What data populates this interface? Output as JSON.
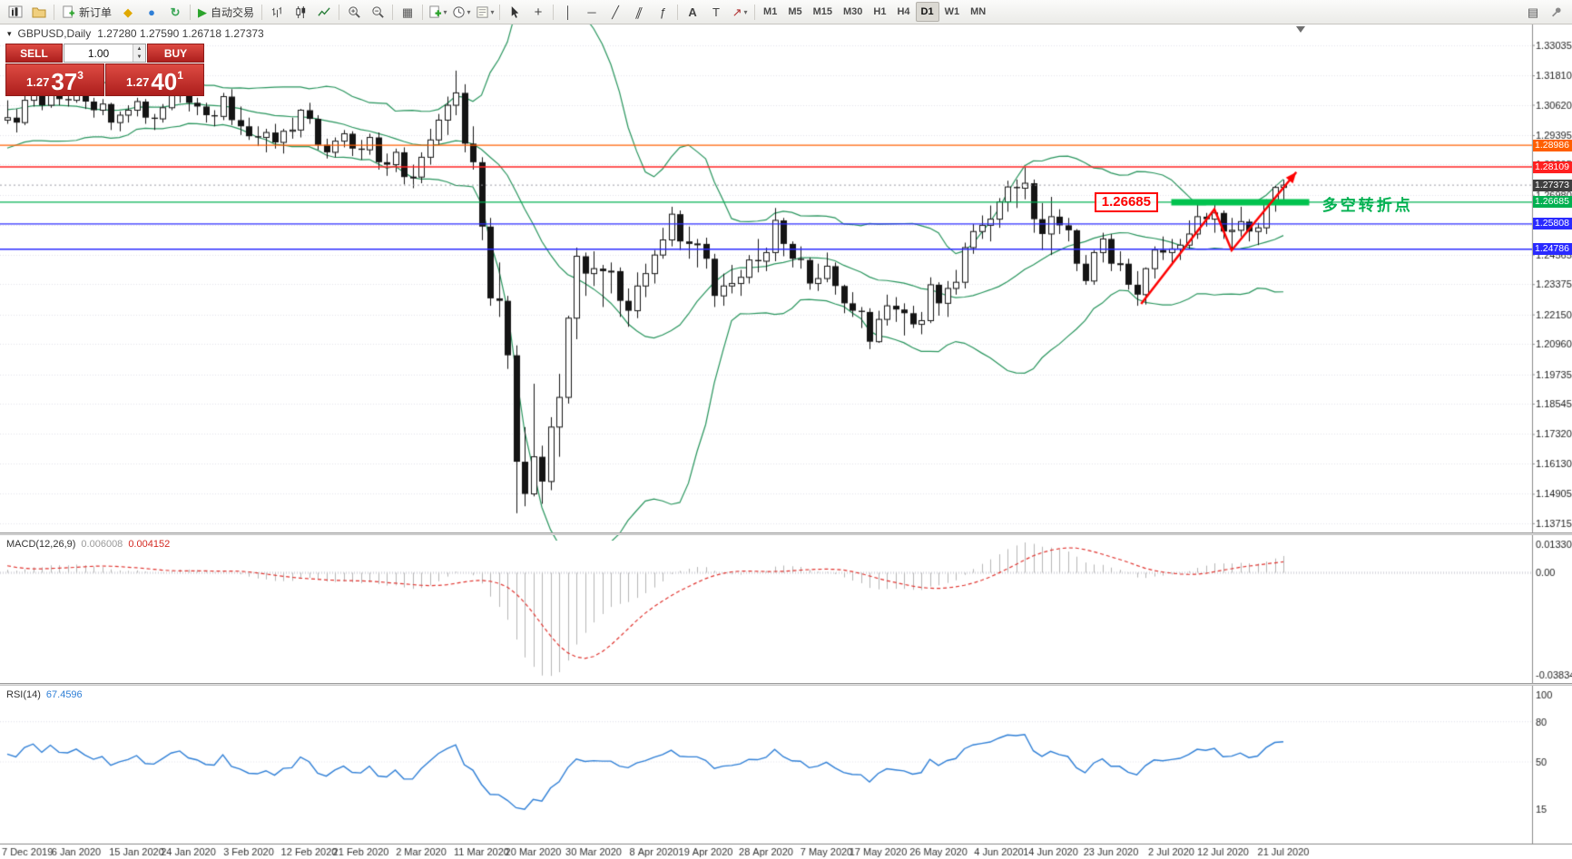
{
  "toolbar": {
    "new_order_label": "新订单",
    "autotrading_label": "自动交易",
    "timeframes": [
      "M1",
      "M5",
      "M15",
      "M30",
      "H1",
      "H4",
      "D1",
      "W1",
      "MN"
    ],
    "active_timeframe": "D1"
  },
  "icons": {
    "metaeditor-icon": "◆",
    "market-watch-icon": "●",
    "navigator-icon": "↻",
    "autotrading-icon": "▶",
    "tile-windows-icon": "▦",
    "crosshair-icon": "+",
    "vertical-line-icon": "│",
    "horizontal-line-icon": "─",
    "trendline-icon": "╱",
    "channel-icon": "∥",
    "fibonacci-icon": "ƒ",
    "text-icon": "A",
    "text-label-icon": "T",
    "arrows-icon": "↗",
    "chart-list-icon": "▤",
    "panel-toggle-icon": "▾",
    "spinner-up": "▲",
    "spinner-down": "▼"
  },
  "quote_bar": {
    "symbol": "GBPUSD,Daily",
    "ohlc": "1.27280 1.27590 1.26718 1.27373"
  },
  "trade_panel": {
    "sell_label": "SELL",
    "buy_label": "BUY",
    "lot_value": "1.00",
    "sell_price_prefix": "1.27",
    "sell_price_big": "37",
    "sell_price_sup": "3",
    "buy_price_prefix": "1.27",
    "buy_price_big": "40",
    "buy_price_sup": "1"
  },
  "indicators": {
    "macd": {
      "title": "MACD(12,26,9)",
      "main_value": "0.006008",
      "signal_value": "0.004152",
      "axis_top": "0.013301",
      "axis_zero": "0.00",
      "axis_bottom": "-0.038343"
    },
    "rsi": {
      "title": "RSI(14)",
      "value": "67.4596",
      "axis_labels": [
        "100",
        "80",
        "50",
        "15"
      ],
      "axis_values": [
        100,
        80,
        50,
        15
      ]
    }
  },
  "chart_data": {
    "type": "candlestick",
    "symbol": "GBPUSD",
    "period": "Daily",
    "ylim": [
      1.1338,
      1.339
    ],
    "y_ticks": [
      1.33035,
      1.3181,
      1.3062,
      1.29395,
      1.28205,
      1.2698,
      1.25755,
      1.24565,
      1.23375,
      1.2215,
      1.2096,
      1.19735,
      1.18545,
      1.1732,
      1.1613,
      1.14905,
      1.13715
    ],
    "current_price": 1.27373,
    "current_price_label": "1.27373",
    "current_price_color": "#3f3f3f",
    "bollinger": {
      "period": 20,
      "deviation": 2,
      "color": "#27945c"
    },
    "candle_colors": {
      "bull_body": "#ffffff",
      "bear_body": "#141414",
      "outline": "#141414"
    },
    "warmup_closes": [
      1.292,
      1.295,
      1.3,
      1.306,
      1.3105,
      1.3085,
      1.312,
      1.316,
      1.32,
      1.315,
      1.3095,
      1.305,
      1.2995,
      1.296,
      1.2925,
      1.2985,
      1.302,
      1.305,
      1.3
    ],
    "candles": [
      [
        1.3,
        1.308,
        1.2985,
        1.301
      ],
      [
        1.301,
        1.3045,
        1.295,
        1.299
      ],
      [
        1.299,
        1.3105,
        1.298,
        1.308
      ],
      [
        1.308,
        1.315,
        1.3055,
        1.312
      ],
      [
        1.312,
        1.3145,
        1.304,
        1.306
      ],
      [
        1.306,
        1.317,
        1.305,
        1.314
      ],
      [
        1.314,
        1.3165,
        1.306,
        1.3085
      ],
      [
        1.3085,
        1.3125,
        1.3055,
        1.308
      ],
      [
        1.308,
        1.3155,
        1.307,
        1.312
      ],
      [
        1.312,
        1.313,
        1.3045,
        1.3075
      ],
      [
        1.3075,
        1.309,
        1.301,
        1.304
      ],
      [
        1.304,
        1.3085,
        1.302,
        1.3065
      ],
      [
        1.3065,
        1.307,
        1.296,
        1.299
      ],
      [
        1.299,
        1.3035,
        1.2955,
        1.302
      ],
      [
        1.302,
        1.306,
        1.299,
        1.304
      ],
      [
        1.304,
        1.309,
        1.3015,
        1.3075
      ],
      [
        1.3075,
        1.3085,
        1.2985,
        1.301
      ],
      [
        1.301,
        1.3025,
        1.296,
        1.3005
      ],
      [
        1.3005,
        1.3065,
        1.299,
        1.305
      ],
      [
        1.305,
        1.3115,
        1.304,
        1.31
      ],
      [
        1.31,
        1.314,
        1.307,
        1.312
      ],
      [
        1.312,
        1.3135,
        1.3035,
        1.307
      ],
      [
        1.307,
        1.309,
        1.302,
        1.3055
      ],
      [
        1.3055,
        1.307,
        1.299,
        1.302
      ],
      [
        1.302,
        1.304,
        1.2975,
        1.3015
      ],
      [
        1.3015,
        1.311,
        1.3,
        1.3095
      ],
      [
        1.3095,
        1.3125,
        1.298,
        1.3
      ],
      [
        1.3,
        1.3055,
        1.294,
        1.2975
      ],
      [
        1.2975,
        1.301,
        1.292,
        1.2935
      ],
      [
        1.2935,
        1.2975,
        1.2895,
        1.293
      ],
      [
        1.293,
        1.2965,
        1.287,
        1.295
      ],
      [
        1.295,
        1.2985,
        1.2885,
        1.291
      ],
      [
        1.291,
        1.2965,
        1.2865,
        1.2955
      ],
      [
        1.2955,
        1.301,
        1.2925,
        1.296
      ],
      [
        1.296,
        1.3045,
        1.293,
        1.304
      ],
      [
        1.304,
        1.307,
        1.2985,
        1.3005
      ],
      [
        1.3005,
        1.302,
        1.288,
        1.29
      ],
      [
        1.29,
        1.2925,
        1.2845,
        1.287
      ],
      [
        1.287,
        1.293,
        1.285,
        1.2915
      ],
      [
        1.2915,
        1.296,
        1.289,
        1.2945
      ],
      [
        1.2945,
        1.2955,
        1.2855,
        1.2885
      ],
      [
        1.2885,
        1.292,
        1.284,
        1.288
      ],
      [
        1.288,
        1.2945,
        1.286,
        1.293
      ],
      [
        1.293,
        1.295,
        1.28,
        1.283
      ],
      [
        1.283,
        1.2865,
        1.2775,
        1.282
      ],
      [
        1.282,
        1.2885,
        1.279,
        1.287
      ],
      [
        1.287,
        1.289,
        1.274,
        1.277
      ],
      [
        1.277,
        1.282,
        1.2725,
        1.277
      ],
      [
        1.277,
        1.287,
        1.2745,
        1.285
      ],
      [
        1.285,
        1.2965,
        1.282,
        1.292
      ],
      [
        1.292,
        1.3025,
        1.29,
        1.3
      ],
      [
        1.3,
        1.3095,
        1.294,
        1.306
      ],
      [
        1.306,
        1.32,
        1.302,
        1.311
      ],
      [
        1.311,
        1.3145,
        1.287,
        1.2905
      ],
      [
        1.2905,
        1.2975,
        1.28,
        1.283
      ],
      [
        1.283,
        1.285,
        1.2515,
        1.257
      ],
      [
        1.257,
        1.2605,
        1.225,
        1.228
      ],
      [
        1.228,
        1.2425,
        1.2205,
        1.227
      ],
      [
        1.227,
        1.229,
        1.1995,
        1.205
      ],
      [
        1.205,
        1.209,
        1.1412,
        1.162
      ],
      [
        1.162,
        1.176,
        1.144,
        1.149
      ],
      [
        1.149,
        1.1935,
        1.148,
        1.164
      ],
      [
        1.164,
        1.1685,
        1.145,
        1.154
      ],
      [
        1.154,
        1.18,
        1.1505,
        1.176
      ],
      [
        1.176,
        1.1975,
        1.164,
        1.188
      ],
      [
        1.188,
        1.221,
        1.1855,
        1.22
      ],
      [
        1.22,
        1.2485,
        1.2115,
        1.245
      ],
      [
        1.245,
        1.2465,
        1.229,
        1.238
      ],
      [
        1.238,
        1.247,
        1.233,
        1.24
      ],
      [
        1.24,
        1.2415,
        1.2245,
        1.239
      ],
      [
        1.239,
        1.2425,
        1.23,
        1.239
      ],
      [
        1.239,
        1.2405,
        1.2205,
        1.227
      ],
      [
        1.227,
        1.232,
        1.2165,
        1.223
      ],
      [
        1.223,
        1.2385,
        1.22,
        1.233
      ],
      [
        1.233,
        1.242,
        1.2285,
        1.238
      ],
      [
        1.238,
        1.2475,
        1.234,
        1.2455
      ],
      [
        1.2455,
        1.2565,
        1.244,
        1.2516
      ],
      [
        1.2516,
        1.265,
        1.249,
        1.262
      ],
      [
        1.262,
        1.2635,
        1.2475,
        1.251
      ],
      [
        1.251,
        1.257,
        1.244,
        1.25
      ],
      [
        1.25,
        1.252,
        1.2405,
        1.25
      ],
      [
        1.25,
        1.2525,
        1.24,
        1.244
      ],
      [
        1.244,
        1.246,
        1.2245,
        1.229
      ],
      [
        1.229,
        1.238,
        1.225,
        1.233
      ],
      [
        1.233,
        1.2415,
        1.23,
        1.234
      ],
      [
        1.234,
        1.2395,
        1.229,
        1.2365
      ],
      [
        1.2365,
        1.2455,
        1.234,
        1.2435
      ],
      [
        1.2435,
        1.252,
        1.2385,
        1.243
      ],
      [
        1.243,
        1.2485,
        1.239,
        1.2465
      ],
      [
        1.2465,
        1.2645,
        1.243,
        1.2595
      ],
      [
        1.2595,
        1.2605,
        1.245,
        1.25
      ],
      [
        1.25,
        1.251,
        1.2405,
        1.244
      ],
      [
        1.244,
        1.249,
        1.24,
        1.2435
      ],
      [
        1.2435,
        1.2445,
        1.2315,
        1.234
      ],
      [
        1.234,
        1.242,
        1.231,
        1.236
      ],
      [
        1.236,
        1.2465,
        1.2345,
        1.241
      ],
      [
        1.241,
        1.2425,
        1.2295,
        1.233
      ],
      [
        1.233,
        1.2335,
        1.222,
        1.226
      ],
      [
        1.226,
        1.2305,
        1.2205,
        1.223
      ],
      [
        1.223,
        1.2245,
        1.216,
        1.2225
      ],
      [
        1.2225,
        1.224,
        1.2075,
        1.2105
      ],
      [
        1.2105,
        1.223,
        1.21,
        1.2195
      ],
      [
        1.2195,
        1.2295,
        1.217,
        1.225
      ],
      [
        1.225,
        1.2285,
        1.2185,
        1.2235
      ],
      [
        1.2235,
        1.226,
        1.213,
        1.222
      ],
      [
        1.222,
        1.225,
        1.216,
        1.2175
      ],
      [
        1.2175,
        1.2225,
        1.2135,
        1.219
      ],
      [
        1.219,
        1.2365,
        1.218,
        1.2335
      ],
      [
        1.2335,
        1.2345,
        1.221,
        1.226
      ],
      [
        1.226,
        1.235,
        1.2205,
        1.232
      ],
      [
        1.232,
        1.2395,
        1.2295,
        1.2345
      ],
      [
        1.2345,
        1.2505,
        1.232,
        1.2485
      ],
      [
        1.2485,
        1.258,
        1.246,
        1.255
      ],
      [
        1.255,
        1.2615,
        1.252,
        1.2575
      ],
      [
        1.2575,
        1.2655,
        1.251,
        1.26
      ],
      [
        1.26,
        1.2685,
        1.2565,
        1.267
      ],
      [
        1.267,
        1.2755,
        1.263,
        1.273
      ],
      [
        1.273,
        1.276,
        1.2645,
        1.2725
      ],
      [
        1.2725,
        1.281,
        1.268,
        1.2745
      ],
      [
        1.2745,
        1.276,
        1.2545,
        1.26
      ],
      [
        1.26,
        1.2665,
        1.2475,
        1.254
      ],
      [
        1.254,
        1.269,
        1.2455,
        1.261
      ],
      [
        1.261,
        1.264,
        1.254,
        1.2575
      ],
      [
        1.2575,
        1.2605,
        1.251,
        1.2555
      ],
      [
        1.2555,
        1.256,
        1.239,
        1.242
      ],
      [
        1.242,
        1.2455,
        1.2335,
        1.235
      ],
      [
        1.235,
        1.2475,
        1.2335,
        1.2465
      ],
      [
        1.2465,
        1.2545,
        1.2425,
        1.252
      ],
      [
        1.252,
        1.254,
        1.239,
        1.242
      ],
      [
        1.242,
        1.247,
        1.239,
        1.242
      ],
      [
        1.242,
        1.244,
        1.2315,
        1.2335
      ],
      [
        1.2335,
        1.239,
        1.225,
        1.2295
      ],
      [
        1.2295,
        1.2405,
        1.2255,
        1.24
      ],
      [
        1.24,
        1.249,
        1.236,
        1.2475
      ],
      [
        1.2475,
        1.253,
        1.2435,
        1.2465
      ],
      [
        1.2465,
        1.252,
        1.2425,
        1.248
      ],
      [
        1.248,
        1.252,
        1.2435,
        1.2495
      ],
      [
        1.2495,
        1.2595,
        1.248,
        1.254
      ],
      [
        1.254,
        1.267,
        1.252,
        1.261
      ],
      [
        1.261,
        1.2625,
        1.257,
        1.26
      ],
      [
        1.26,
        1.2665,
        1.2545,
        1.2625
      ],
      [
        1.2625,
        1.2635,
        1.252,
        1.255
      ],
      [
        1.255,
        1.2605,
        1.248,
        1.2555
      ],
      [
        1.2555,
        1.265,
        1.253,
        1.259
      ],
      [
        1.259,
        1.26,
        1.251,
        1.255
      ],
      [
        1.255,
        1.2585,
        1.2495,
        1.2565
      ],
      [
        1.2565,
        1.268,
        1.254,
        1.266
      ],
      [
        1.266,
        1.2735,
        1.263,
        1.2728
      ],
      [
        1.2728,
        1.2759,
        1.26718,
        1.27373
      ]
    ],
    "x_labels": [
      {
        "i": 1,
        "label": "7 Dec 2019"
      },
      {
        "i": 8,
        "label": "6 Jan 2020"
      },
      {
        "i": 15,
        "label": "15 Jan 2020"
      },
      {
        "i": 21,
        "label": "24 Jan 2020"
      },
      {
        "i": 28,
        "label": "3 Feb 2020"
      },
      {
        "i": 35,
        "label": "12 Feb 2020"
      },
      {
        "i": 41,
        "label": "21 Feb 2020"
      },
      {
        "i": 48,
        "label": "2 Mar 2020"
      },
      {
        "i": 55,
        "label": "11 Mar 2020"
      },
      {
        "i": 61,
        "label": "20 Mar 2020"
      },
      {
        "i": 68,
        "label": "30 Mar 2020"
      },
      {
        "i": 75,
        "label": "8 Apr 2020"
      },
      {
        "i": 81,
        "label": "19 Apr 2020"
      },
      {
        "i": 88,
        "label": "28 Apr 2020"
      },
      {
        "i": 95,
        "label": "7 May 2020"
      },
      {
        "i": 101,
        "label": "17 May 2020"
      },
      {
        "i": 108,
        "label": "26 May 2020"
      },
      {
        "i": 115,
        "label": "4 Jun 2020"
      },
      {
        "i": 121,
        "label": "14 Jun 2020"
      },
      {
        "i": 128,
        "label": "23 Jun 2020"
      },
      {
        "i": 135,
        "label": "2 Jul 2020"
      },
      {
        "i": 141,
        "label": "12 Jul 2020"
      },
      {
        "i": 148,
        "label": "21 Jul 2020"
      }
    ],
    "hlines": [
      {
        "price": 1.28986,
        "label": "1.28986",
        "color": "#ff5f00"
      },
      {
        "price": 1.28109,
        "label": "1.28109",
        "color": "#ff2020"
      },
      {
        "price": 1.26685,
        "label": "1.26685",
        "color": "#00b050"
      },
      {
        "price": 1.25808,
        "label": "1.25808",
        "color": "#2a2aff"
      },
      {
        "price": 1.24786,
        "label": "1.24786",
        "color": "#2a2aff"
      }
    ],
    "objects": {
      "thick_segment": {
        "from_i": 135,
        "to_i": 151,
        "price": 1.26685,
        "color": "#00c24e",
        "width": 7
      },
      "zigzag_arrow": {
        "color": "#fe0000",
        "width": 2.5,
        "points": [
          [
            131.5,
            1.2258
          ],
          [
            140,
            1.264
          ],
          [
            142,
            1.2474
          ],
          [
            149.5,
            1.279
          ]
        ]
      },
      "price_callout": {
        "i": 130.5,
        "price": 1.26685,
        "text": "1.26685",
        "color": "#fe0000"
      },
      "note_text": {
        "i": 152.5,
        "price": 1.26685,
        "text": "多空转折点",
        "color": "#00b050"
      }
    },
    "macd_colors": {
      "histogram": "#b6b6b6",
      "signal": "#e03530"
    },
    "rsi_color": "#2f7fd6",
    "grid_color": "#e2e2ea"
  }
}
